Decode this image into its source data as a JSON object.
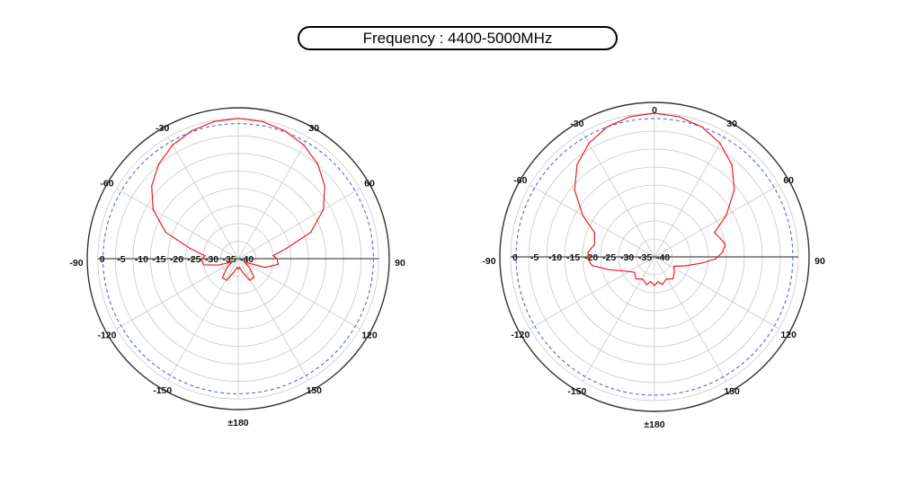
{
  "title": "Frequency : 4400-5000MHz",
  "colors": {
    "pattern": "#ee1c1c",
    "reference_ring": "#5566ee",
    "grid": "#c8c8c8",
    "outer": "#333333"
  },
  "chart_data": [
    {
      "type": "polar",
      "angle_labels": [
        {
          "deg": 0,
          "label": ""
        },
        {
          "deg": -30,
          "label": "-30"
        },
        {
          "deg": 30,
          "label": "30"
        },
        {
          "deg": -60,
          "label": "-60"
        },
        {
          "deg": 60,
          "label": "60"
        },
        {
          "deg": -90,
          "label": "-90"
        },
        {
          "deg": 90,
          "label": "90"
        },
        {
          "deg": -120,
          "label": "-120"
        },
        {
          "deg": 120,
          "label": "120"
        },
        {
          "deg": -150,
          "label": "-150"
        },
        {
          "deg": 150,
          "label": "150"
        },
        {
          "deg": 180,
          "label": "±180"
        }
      ],
      "radial_ticks": [
        "0",
        "-5",
        "-10",
        "-15",
        "-20",
        "-25",
        "-30",
        "-35",
        "-40"
      ],
      "r_range_db": [
        -40,
        0
      ],
      "reference_ring_db": -1.5,
      "series": [
        {
          "points": [
            {
              "deg": 0,
              "db": 0
            },
            {
              "deg": 10,
              "db": -0.3
            },
            {
              "deg": 20,
              "db": -1.2
            },
            {
              "deg": 30,
              "db": -2.6
            },
            {
              "deg": 40,
              "db": -4.8
            },
            {
              "deg": 50,
              "db": -7.8
            },
            {
              "deg": 60,
              "db": -12
            },
            {
              "deg": 70,
              "db": -18
            },
            {
              "deg": 78,
              "db": -26
            },
            {
              "deg": 85,
              "db": -30
            },
            {
              "deg": 90,
              "db": -29
            },
            {
              "deg": 98,
              "db": -28.5
            },
            {
              "deg": 108,
              "db": -32
            },
            {
              "deg": 118,
              "db": -38
            },
            {
              "deg": 128,
              "db": -36
            },
            {
              "deg": 140,
              "db": -33
            },
            {
              "deg": 152,
              "db": -33
            },
            {
              "deg": 162,
              "db": -36
            },
            {
              "deg": 172,
              "db": -37.5
            },
            {
              "deg": 180,
              "db": -37
            },
            {
              "deg": 188,
              "db": -37.5
            },
            {
              "deg": 198,
              "db": -36
            },
            {
              "deg": 208,
              "db": -33
            },
            {
              "deg": 220,
              "db": -33
            },
            {
              "deg": 232,
              "db": -36
            },
            {
              "deg": 242,
              "db": -38
            },
            {
              "deg": 252,
              "db": -34
            },
            {
              "deg": 260,
              "db": -30
            },
            {
              "deg": 268,
              "db": -29.5
            },
            {
              "deg": 275,
              "db": -30.5
            },
            {
              "deg": 282,
              "db": -26
            },
            {
              "deg": 290,
              "db": -18
            },
            {
              "deg": 300,
              "db": -12
            },
            {
              "deg": 310,
              "db": -7.8
            },
            {
              "deg": 320,
              "db": -4.8
            },
            {
              "deg": 330,
              "db": -2.6
            },
            {
              "deg": 340,
              "db": -1.2
            },
            {
              "deg": 350,
              "db": -0.3
            }
          ]
        }
      ]
    },
    {
      "type": "polar",
      "angle_labels": [
        {
          "deg": 0,
          "label": "0"
        },
        {
          "deg": -30,
          "label": "-30"
        },
        {
          "deg": 30,
          "label": "30"
        },
        {
          "deg": -60,
          "label": "-60"
        },
        {
          "deg": 60,
          "label": "60"
        },
        {
          "deg": -90,
          "label": "-90"
        },
        {
          "deg": 90,
          "label": "90"
        },
        {
          "deg": -120,
          "label": "-120"
        },
        {
          "deg": 120,
          "label": "120"
        },
        {
          "deg": -150,
          "label": "-150"
        },
        {
          "deg": 150,
          "label": "150"
        },
        {
          "deg": 180,
          "label": "±180"
        }
      ],
      "radial_ticks": [
        "0",
        "-5",
        "-10",
        "-15",
        "-20",
        "-25",
        "-30",
        "-35",
        "-40"
      ],
      "r_range_db": [
        -40,
        0
      ],
      "reference_ring_db": -1.5,
      "series": [
        {
          "points": [
            {
              "deg": 0,
              "db": 0
            },
            {
              "deg": 10,
              "db": -0.4
            },
            {
              "deg": 20,
              "db": -1.5
            },
            {
              "deg": 30,
              "db": -3.5
            },
            {
              "deg": 40,
              "db": -6.5
            },
            {
              "deg": 50,
              "db": -11
            },
            {
              "deg": 60,
              "db": -17
            },
            {
              "deg": 68,
              "db": -22
            },
            {
              "deg": 74,
              "db": -21
            },
            {
              "deg": 80,
              "db": -20
            },
            {
              "deg": 86,
              "db": -21
            },
            {
              "deg": 92,
              "db": -23
            },
            {
              "deg": 98,
              "db": -27
            },
            {
              "deg": 106,
              "db": -31
            },
            {
              "deg": 116,
              "db": -34
            },
            {
              "deg": 128,
              "db": -33
            },
            {
              "deg": 140,
              "db": -32
            },
            {
              "deg": 152,
              "db": -33
            },
            {
              "deg": 164,
              "db": -32
            },
            {
              "deg": 172,
              "db": -33
            },
            {
              "deg": 180,
              "db": -32
            },
            {
              "deg": 188,
              "db": -33
            },
            {
              "deg": 196,
              "db": -32
            },
            {
              "deg": 208,
              "db": -33
            },
            {
              "deg": 220,
              "db": -32
            },
            {
              "deg": 232,
              "db": -33
            },
            {
              "deg": 244,
              "db": -31
            },
            {
              "deg": 254,
              "db": -27
            },
            {
              "deg": 262,
              "db": -22.5
            },
            {
              "deg": 268,
              "db": -21.5
            },
            {
              "deg": 274,
              "db": -21.5
            },
            {
              "deg": 282,
              "db": -23
            },
            {
              "deg": 292,
              "db": -22
            },
            {
              "deg": 300,
              "db": -17
            },
            {
              "deg": 310,
              "db": -11
            },
            {
              "deg": 320,
              "db": -6.5
            },
            {
              "deg": 330,
              "db": -3.5
            },
            {
              "deg": 340,
              "db": -1.5
            },
            {
              "deg": 350,
              "db": -0.4
            }
          ]
        }
      ]
    }
  ]
}
